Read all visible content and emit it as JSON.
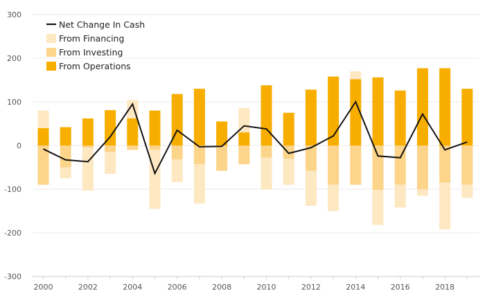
{
  "chart_data": {
    "type": "bar",
    "title": "",
    "xlabel": "",
    "ylabel": "",
    "ylim": [
      -300,
      300
    ],
    "yticks": [
      300,
      200,
      100,
      0,
      -100,
      -200,
      -300
    ],
    "x": [
      2000,
      2001,
      2002,
      2003,
      2004,
      2005,
      2006,
      2007,
      2008,
      2009,
      2010,
      2011,
      2012,
      2013,
      2014,
      2015,
      2016,
      2017,
      2018,
      2019
    ],
    "xtick_labels": [
      "2000",
      "2002",
      "2004",
      "2006",
      "2008",
      "2010",
      "2012",
      "2014",
      "2016",
      "2018"
    ],
    "series": [
      {
        "name": "From Operations",
        "kind": "bar",
        "color": "#F7AE00",
        "values": [
          40,
          42,
          62,
          81,
          62,
          80,
          118,
          130,
          55,
          30,
          138,
          75,
          128,
          158,
          152,
          156,
          126,
          177,
          177,
          130
        ]
      },
      {
        "name": "From Investing",
        "kind": "bar",
        "color": "#FCD48A",
        "values": [
          -90,
          -50,
          -5,
          -15,
          -10,
          -10,
          -32,
          -43,
          -58,
          -43,
          -28,
          -30,
          -58,
          -90,
          -90,
          -102,
          -90,
          -100,
          -85,
          -90
        ]
      },
      {
        "name": "From Financing",
        "kind": "bar",
        "color": "#FDE8C2",
        "values": [
          40,
          -25,
          -98,
          -50,
          42,
          -135,
          -52,
          -90,
          0,
          56,
          -73,
          -60,
          -80,
          -60,
          18,
          -80,
          -52,
          -15,
          -107,
          -30
        ]
      },
      {
        "name": "Net Change In Cash",
        "kind": "line",
        "color": "#111111",
        "values": [
          -8,
          -33,
          -37,
          20,
          95,
          -64,
          35,
          -3,
          -2,
          45,
          38,
          -18,
          -5,
          22,
          100,
          -24,
          -28,
          72,
          -10,
          8
        ]
      }
    ],
    "legend": {
      "position": "top-left",
      "entries": [
        "Net Change In Cash",
        "From Financing",
        "From Investing",
        "From Operations"
      ]
    },
    "grid": true
  }
}
